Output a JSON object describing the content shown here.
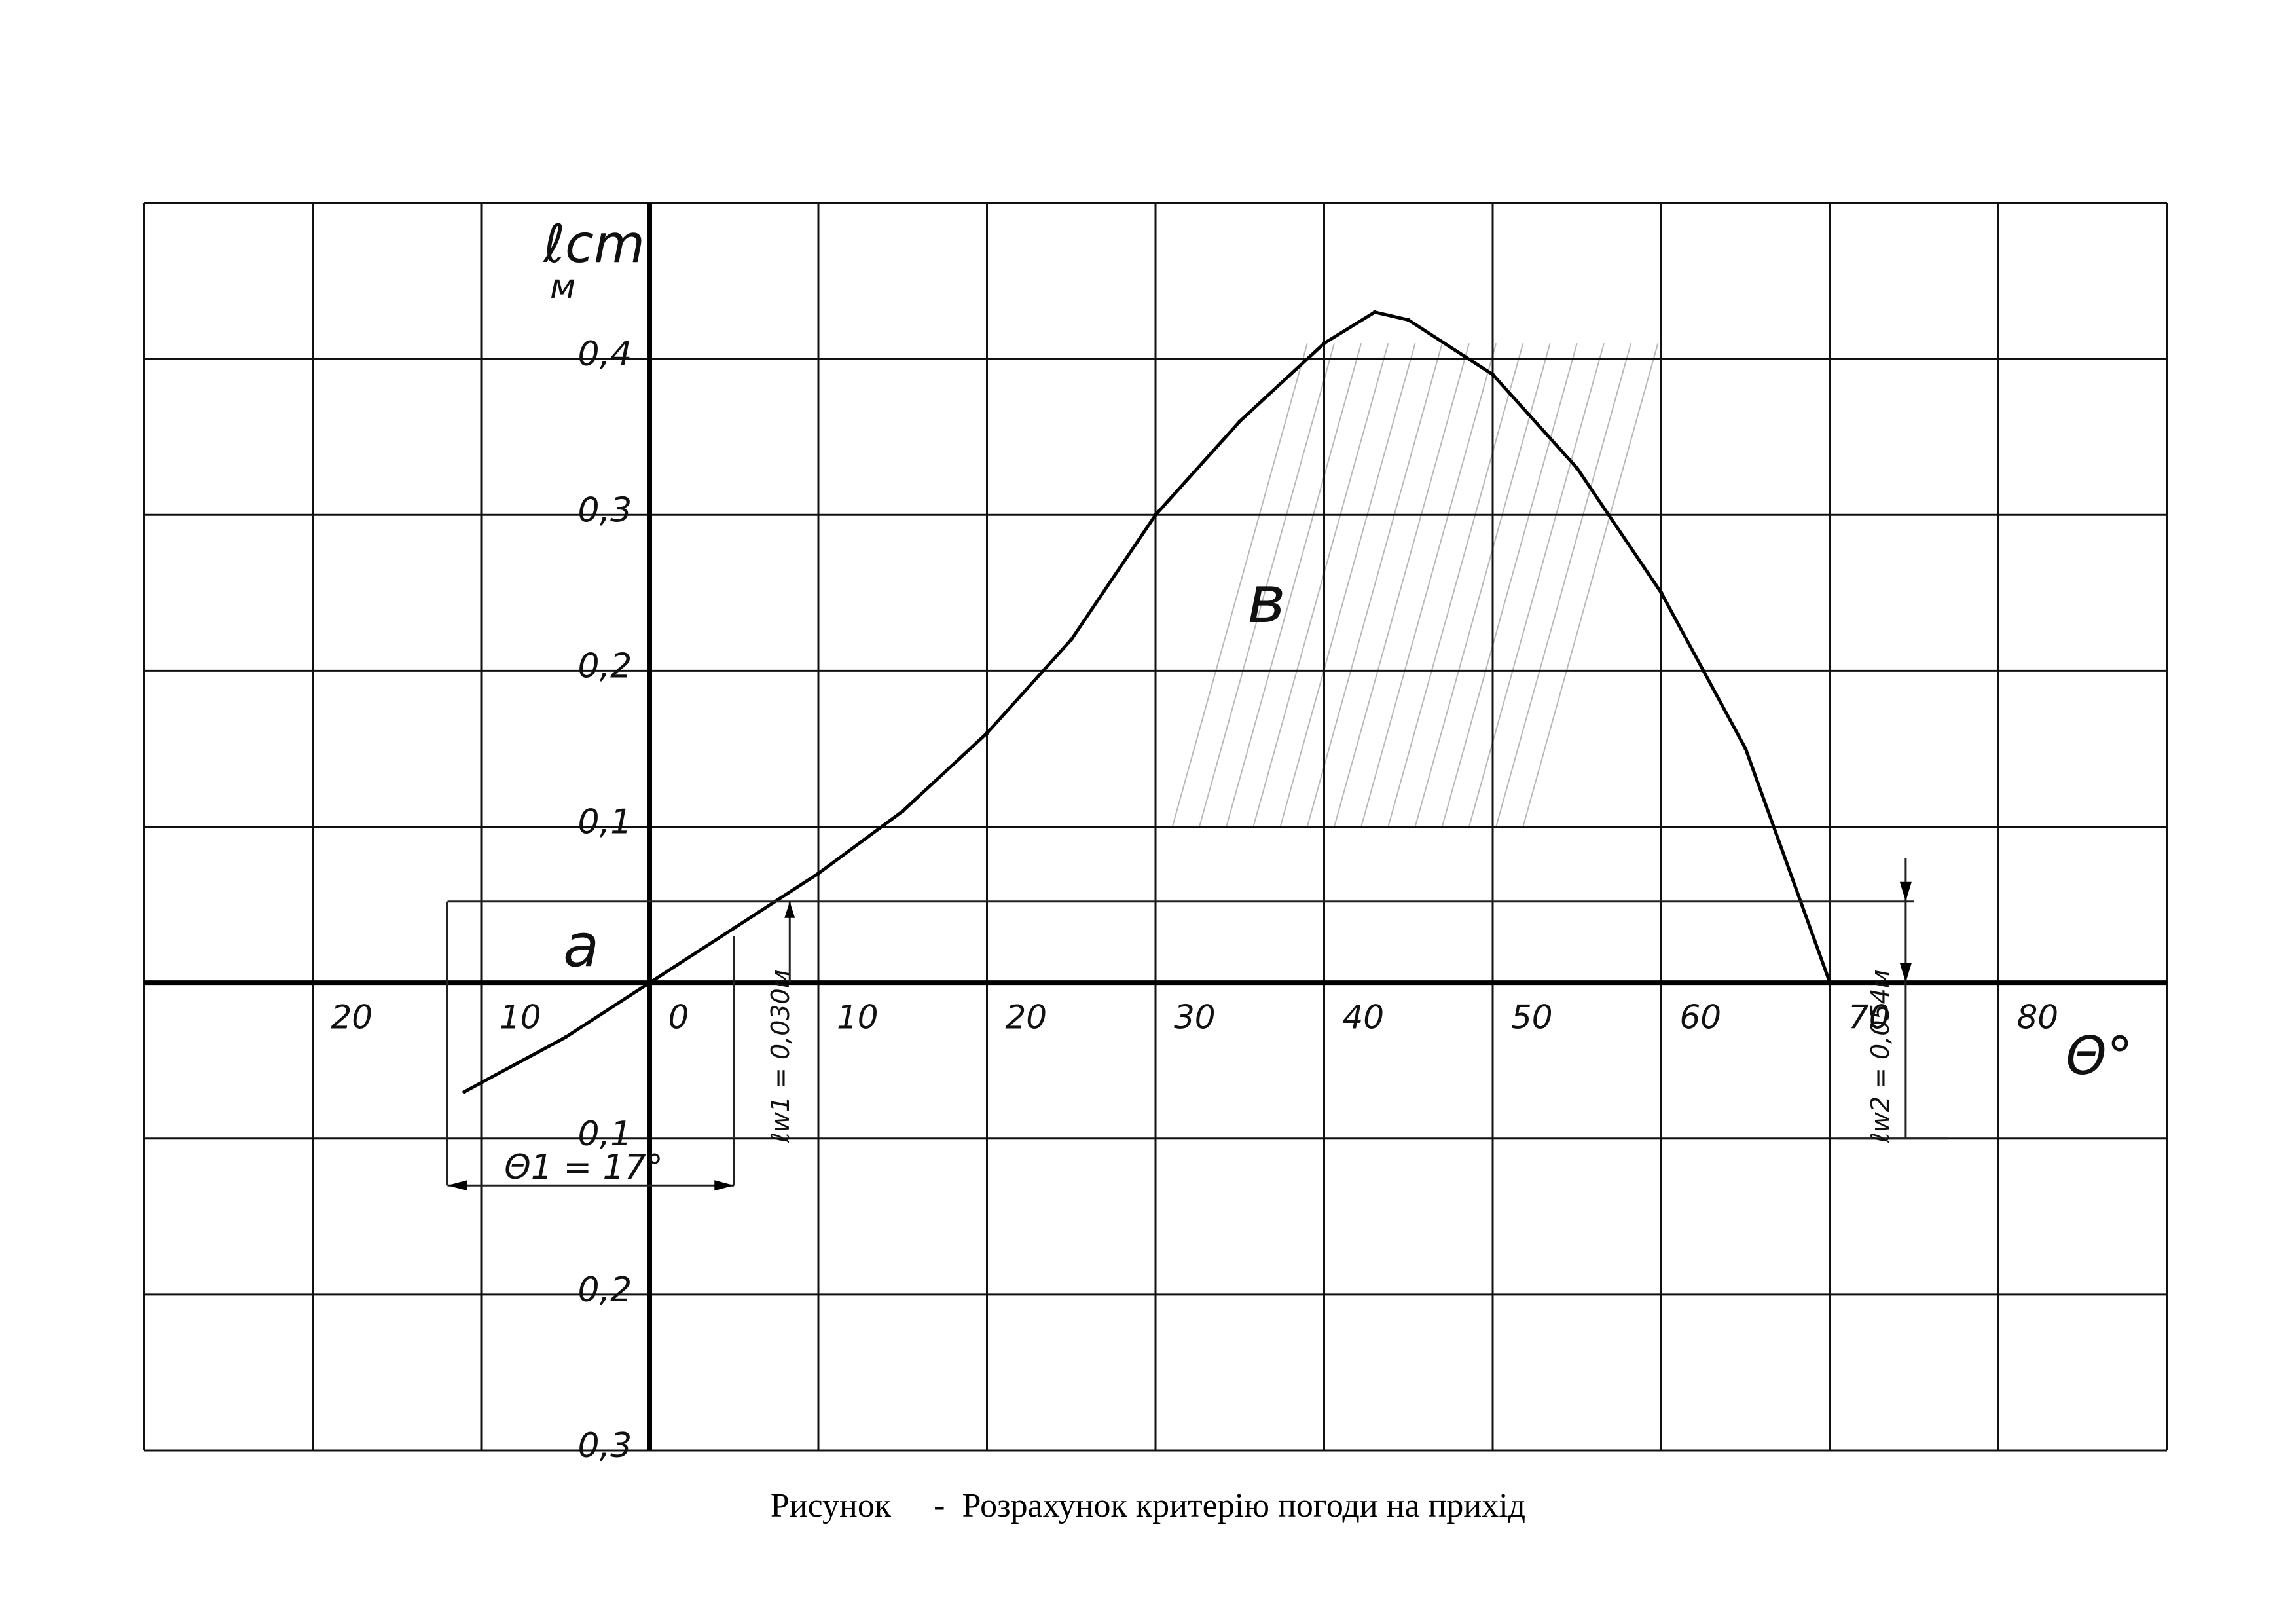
{
  "chart_data": {
    "type": "line",
    "ylabel": "ℓcm",
    "yunit": "м",
    "xlabel": "Θ°",
    "xlim": [
      -30,
      90
    ],
    "ylim": [
      -0.3,
      0.5
    ],
    "x_ticks": [
      {
        "value": -20,
        "label": "20"
      },
      {
        "value": -10,
        "label": "10"
      },
      {
        "value": 0,
        "label": "0"
      },
      {
        "value": 10,
        "label": "10"
      },
      {
        "value": 20,
        "label": "20"
      },
      {
        "value": 30,
        "label": "30"
      },
      {
        "value": 40,
        "label": "40"
      },
      {
        "value": 50,
        "label": "50"
      },
      {
        "value": 60,
        "label": "60"
      },
      {
        "value": 70,
        "label": "70"
      },
      {
        "value": 80,
        "label": "80"
      }
    ],
    "y_ticks": [
      {
        "value": 0.4,
        "label": "0,4"
      },
      {
        "value": 0.3,
        "label": "0,3"
      },
      {
        "value": 0.2,
        "label": "0,2"
      },
      {
        "value": 0.1,
        "label": "0,1"
      },
      {
        "value": -0.1,
        "label": "0,1"
      },
      {
        "value": -0.2,
        "label": "0,2"
      },
      {
        "value": -0.3,
        "label": "0,3"
      }
    ],
    "grid": true,
    "series": [
      {
        "x": [
          -11,
          -5,
          0,
          5,
          10,
          15,
          20,
          25,
          30,
          35,
          40,
          43,
          45,
          50,
          55,
          60,
          65,
          70
        ],
        "y": [
          -0.07,
          -0.035,
          0,
          0.035,
          0.07,
          0.11,
          0.16,
          0.22,
          0.3,
          0.36,
          0.41,
          0.43,
          0.425,
          0.39,
          0.33,
          0.25,
          0.15,
          0.0
        ]
      }
    ],
    "annotations": {
      "area_a": "a",
      "area_b": "в",
      "theta1": "Θ1 = 17°",
      "lw1": "ℓw1 = 0,030м",
      "lw2": "ℓw2 = 0,054м"
    }
  },
  "caption": {
    "prefix": "Рисунок",
    "text": "-  Розрахунок критерію погоди на прихід"
  }
}
